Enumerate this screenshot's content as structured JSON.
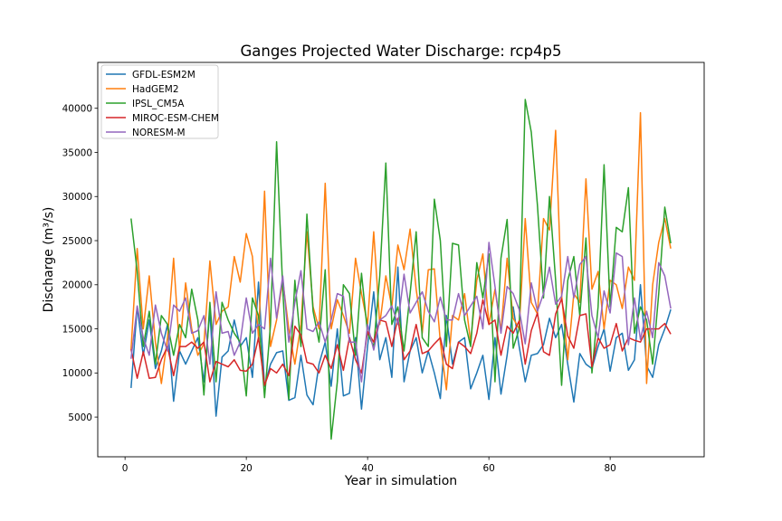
{
  "chart_data": {
    "type": "line",
    "title": "Ganges Projected Water Discharge: rcp4p5",
    "xlabel": "Year in simulation",
    "ylabel": "Discharge (m³/s)",
    "xlim": [
      -4.5,
      95.5
    ],
    "ylim": [
      500,
      45200
    ],
    "xticks": [
      0,
      20,
      40,
      60,
      80
    ],
    "yticks": [
      5000,
      10000,
      15000,
      20000,
      25000,
      30000,
      35000,
      40000
    ],
    "grid": false,
    "legend_position": "top-left",
    "x": [
      1,
      2,
      3,
      4,
      5,
      6,
      7,
      8,
      9,
      10,
      11,
      12,
      13,
      14,
      15,
      16,
      17,
      18,
      19,
      20,
      21,
      22,
      23,
      24,
      25,
      26,
      27,
      28,
      29,
      30,
      31,
      32,
      33,
      34,
      35,
      36,
      37,
      38,
      39,
      40,
      41,
      42,
      43,
      44,
      45,
      46,
      47,
      48,
      49,
      50,
      51,
      52,
      53,
      54,
      55,
      56,
      57,
      58,
      59,
      60,
      61,
      62,
      63,
      64,
      65,
      66,
      67,
      68,
      69,
      70,
      71,
      72,
      73,
      74,
      75,
      76,
      77,
      78,
      79,
      80,
      81,
      82,
      83,
      84,
      85,
      86,
      87,
      88,
      89,
      90
    ],
    "series": [
      {
        "name": "GFDL-ESM2M",
        "color": "#1f77b4",
        "values": [
          8300,
          17500,
          12000,
          16000,
          10500,
          12500,
          15500,
          6800,
          12500,
          11000,
          12500,
          14000,
          9000,
          17000,
          5100,
          11800,
          12500,
          16000,
          13000,
          14000,
          9500,
          20300,
          8500,
          11000,
          12300,
          12500,
          6900,
          7200,
          12000,
          7500,
          6400,
          11000,
          13500,
          8500,
          15000,
          7400,
          7700,
          14000,
          5900,
          13000,
          19200,
          11500,
          14000,
          9500,
          22000,
          9000,
          12500,
          14000,
          10000,
          12500,
          10000,
          7100,
          16500,
          11000,
          13500,
          14000,
          8200,
          10000,
          12000,
          7000,
          14000,
          7600,
          12000,
          17500,
          13000,
          9000,
          12000,
          12200,
          13200,
          16200,
          14000,
          15500,
          11000,
          6700,
          12200,
          11000,
          10500,
          13000,
          15000,
          10200,
          14000,
          14500,
          10300,
          11500,
          20000,
          10800,
          9500,
          13200,
          15000,
          17200
        ]
      },
      {
        "name": "HadGEM2",
        "color": "#ff7f0e",
        "values": [
          12700,
          24100,
          15000,
          21000,
          13500,
          8800,
          14000,
          23000,
          12500,
          20200,
          15000,
          12000,
          13300,
          22700,
          15500,
          17000,
          17500,
          23200,
          20300,
          25800,
          23200,
          14000,
          30600,
          13000,
          16000,
          20500,
          15000,
          11000,
          15500,
          26000,
          17500,
          15000,
          31500,
          15000,
          18300,
          16500,
          14500,
          23000,
          19000,
          15500,
          26000,
          15500,
          21000,
          17500,
          24500,
          21700,
          26300,
          19500,
          14500,
          21700,
          21800,
          13500,
          8100,
          16500,
          16000,
          19000,
          13500,
          20500,
          23500,
          15500,
          19500,
          14800,
          23000,
          16200,
          15000,
          27500,
          18000,
          16700,
          27500,
          26200,
          37500,
          18800,
          11500,
          19000,
          18000,
          32000,
          19500,
          21500,
          15000,
          20500,
          20000,
          17300,
          22000,
          20500,
          39500,
          8800,
          20000,
          24800,
          27500,
          24100
        ]
      },
      {
        "name": "IPSL_CM5A",
        "color": "#2ca02c",
        "values": [
          27500,
          21500,
          13000,
          17000,
          11000,
          16500,
          15500,
          12000,
          15500,
          14000,
          19500,
          16000,
          7500,
          18000,
          9000,
          18000,
          16000,
          14500,
          13500,
          7400,
          18500,
          16500,
          7200,
          15500,
          36200,
          19500,
          7000,
          20500,
          13000,
          28000,
          17000,
          13500,
          21700,
          2500,
          9000,
          20000,
          19000,
          12000,
          21300,
          14500,
          13000,
          21000,
          33800,
          15500,
          17500,
          12500,
          19000,
          26000,
          14000,
          13000,
          29700,
          25000,
          13000,
          24700,
          24500,
          16000,
          13000,
          22500,
          18500,
          23500,
          9000,
          23000,
          27400,
          12800,
          15000,
          41000,
          37300,
          29000,
          18500,
          30000,
          20500,
          8600,
          20500,
          23200,
          16500,
          25300,
          10000,
          17500,
          33600,
          17500,
          26500,
          26000,
          31000,
          14500,
          17500,
          16000,
          11000,
          19000,
          28800,
          24700
        ]
      },
      {
        "name": "MIROC-ESM-CHEM",
        "color": "#d62728",
        "values": [
          12700,
          9400,
          12400,
          9400,
          9500,
          11500,
          13000,
          9700,
          13000,
          13000,
          13500,
          12800,
          13500,
          9000,
          11300,
          11000,
          10700,
          11500,
          10300,
          10200,
          11000,
          14000,
          8600,
          10500,
          10000,
          11000,
          9700,
          15300,
          14300,
          11200,
          11000,
          10000,
          12000,
          10500,
          13200,
          10300,
          14000,
          11500,
          10000,
          14700,
          13500,
          16000,
          15800,
          13000,
          16200,
          11500,
          12500,
          15500,
          12200,
          12500,
          13300,
          14000,
          11000,
          10500,
          13500,
          13000,
          12200,
          14500,
          18300,
          15500,
          16000,
          12000,
          15300,
          14500,
          15900,
          11000,
          14800,
          16800,
          12400,
          12000,
          16700,
          18400,
          14200,
          12800,
          16500,
          16700,
          10700,
          14000,
          12800,
          13200,
          15600,
          12500,
          14000,
          13700,
          13500,
          15000,
          15000,
          15000,
          15600,
          14400
        ]
      },
      {
        "name": "NORESM-M",
        "color": "#9467bd",
        "values": [
          11600,
          17600,
          14000,
          12000,
          17700,
          14500,
          12500,
          17700,
          17000,
          18500,
          14500,
          14800,
          16500,
          11000,
          19200,
          14500,
          14700,
          12000,
          13500,
          18500,
          14500,
          15500,
          15000,
          23000,
          16200,
          21000,
          13500,
          18000,
          21600,
          15000,
          14700,
          15800,
          13500,
          16000,
          19000,
          18700,
          13500,
          13500,
          9000,
          15500,
          12600,
          16000,
          16500,
          17600,
          15500,
          21200,
          16800,
          18000,
          19200,
          17000,
          15800,
          18600,
          16000,
          16000,
          19000,
          16500,
          17600,
          18700,
          15000,
          24800,
          19800,
          14500,
          19800,
          19000,
          17200,
          13300,
          20200,
          17000,
          19000,
          22000,
          17800,
          18700,
          23200,
          18500,
          22300,
          23200,
          16500,
          14000,
          19300,
          16800,
          23600,
          23200,
          13200,
          18500,
          13800,
          17000,
          14000,
          22500,
          21000,
          17300
        ]
      }
    ]
  }
}
